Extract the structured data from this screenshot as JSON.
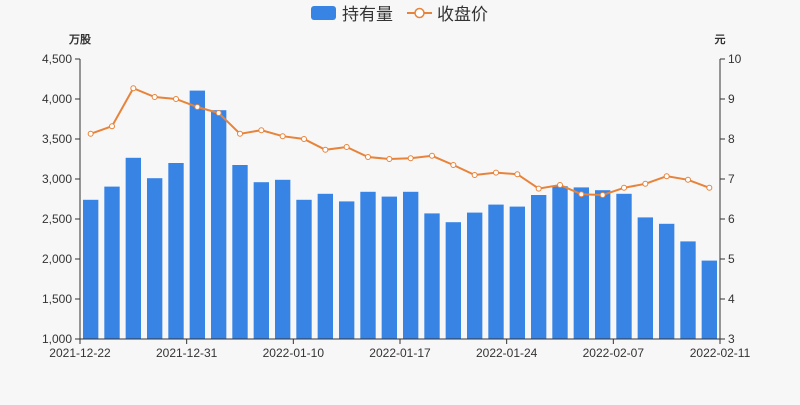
{
  "chart_data": {
    "type": "bar",
    "legend": {
      "position": "top-center",
      "items": [
        {
          "label": "持有量",
          "kind": "bar",
          "color": "#3784e4"
        },
        {
          "label": "收盘价",
          "kind": "line",
          "color": "#e8833a"
        }
      ]
    },
    "left_axis": {
      "unit": "万股",
      "range": [
        1000,
        4500
      ],
      "ticks": [
        1000,
        1500,
        2000,
        2500,
        3000,
        3500,
        4000,
        4500
      ],
      "tick_labels": [
        "1,000",
        "1,500",
        "2,000",
        "2,500",
        "3,000",
        "3,500",
        "4,000",
        "4,500"
      ]
    },
    "right_axis": {
      "unit": "元",
      "range": [
        3,
        10
      ],
      "ticks": [
        3,
        4,
        5,
        6,
        7,
        8,
        9,
        10
      ],
      "tick_labels": [
        "3",
        "4",
        "5",
        "6",
        "7",
        "8",
        "9",
        "10"
      ]
    },
    "x_tick_labels": [
      {
        "index": 0,
        "label": "2021-12-22"
      },
      {
        "index": 5,
        "label": "2021-12-31"
      },
      {
        "index": 10,
        "label": "2022-01-10"
      },
      {
        "index": 15,
        "label": "2022-01-17"
      },
      {
        "index": 20,
        "label": "2022-01-24"
      },
      {
        "index": 25,
        "label": "2022-02-07"
      },
      {
        "index": 29,
        "label": "2022-02-11"
      }
    ],
    "grid": false,
    "series": [
      {
        "name": "持有量",
        "type": "bar",
        "axis": "left",
        "color": "#3784e4",
        "values": [
          2740,
          2905,
          3265,
          3010,
          3200,
          4105,
          3860,
          3175,
          2960,
          2990,
          2740,
          2815,
          2720,
          2840,
          2780,
          2840,
          2570,
          2460,
          2580,
          2680,
          2655,
          2800,
          2910,
          2895,
          2860,
          2815,
          2520,
          2440,
          2220,
          1980
        ]
      },
      {
        "name": "收盘价",
        "type": "line",
        "axis": "right",
        "color": "#e8833a",
        "values": [
          8.13,
          8.32,
          9.27,
          9.05,
          9.0,
          8.8,
          8.65,
          8.13,
          8.22,
          8.07,
          8.0,
          7.73,
          7.8,
          7.55,
          7.5,
          7.52,
          7.58,
          7.35,
          7.1,
          7.16,
          7.12,
          6.76,
          6.85,
          6.62,
          6.6,
          6.78,
          6.88,
          7.07,
          6.98,
          6.78
        ]
      }
    ]
  }
}
